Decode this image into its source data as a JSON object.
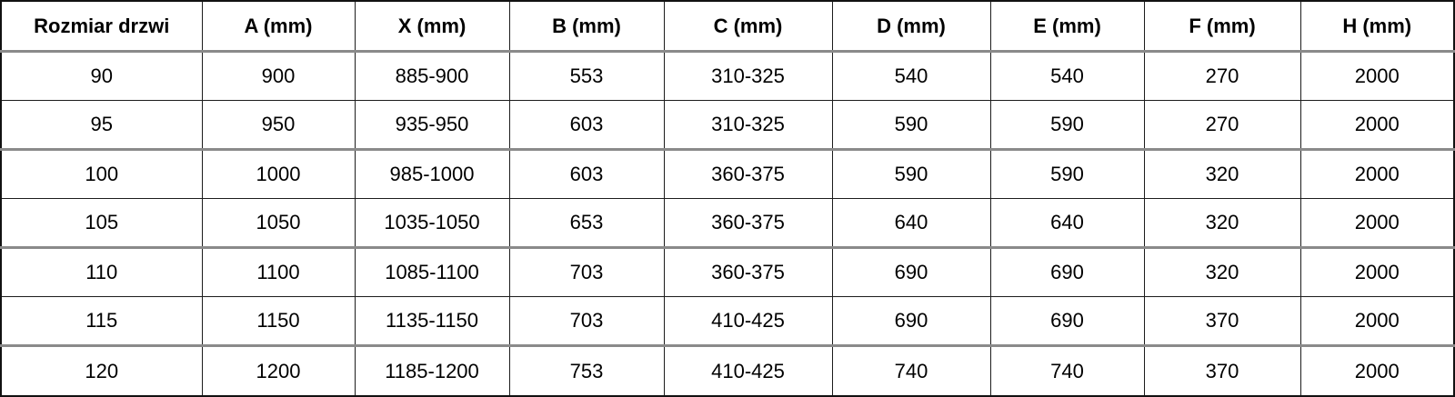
{
  "table": {
    "columns": [
      "Rozmiar drzwi",
      "A (mm)",
      "X (mm)",
      "B (mm)",
      "C (mm)",
      "D (mm)",
      "E (mm)",
      "F (mm)",
      "H (mm)"
    ],
    "rows": [
      [
        "90",
        "900",
        "885-900",
        "553",
        "310-325",
        "540",
        "540",
        "270",
        "2000"
      ],
      [
        "95",
        "950",
        "935-950",
        "603",
        "310-325",
        "590",
        "590",
        "270",
        "2000"
      ],
      [
        "100",
        "1000",
        "985-1000",
        "603",
        "360-375",
        "590",
        "590",
        "320",
        "2000"
      ],
      [
        "105",
        "1050",
        "1035-1050",
        "653",
        "360-375",
        "640",
        "640",
        "320",
        "2000"
      ],
      [
        "110",
        "1100",
        "1085-1100",
        "703",
        "360-375",
        "690",
        "690",
        "320",
        "2000"
      ],
      [
        "115",
        "1150",
        "1135-1150",
        "703",
        "410-425",
        "690",
        "690",
        "370",
        "2000"
      ],
      [
        "120",
        "1200",
        "1185-1200",
        "753",
        "410-425",
        "740",
        "740",
        "370",
        "2000"
      ]
    ]
  },
  "colors": {
    "text": "#000000",
    "border_dark": "#1c1c1c",
    "border_gray": "#8a8a8a",
    "background": "#ffffff"
  }
}
